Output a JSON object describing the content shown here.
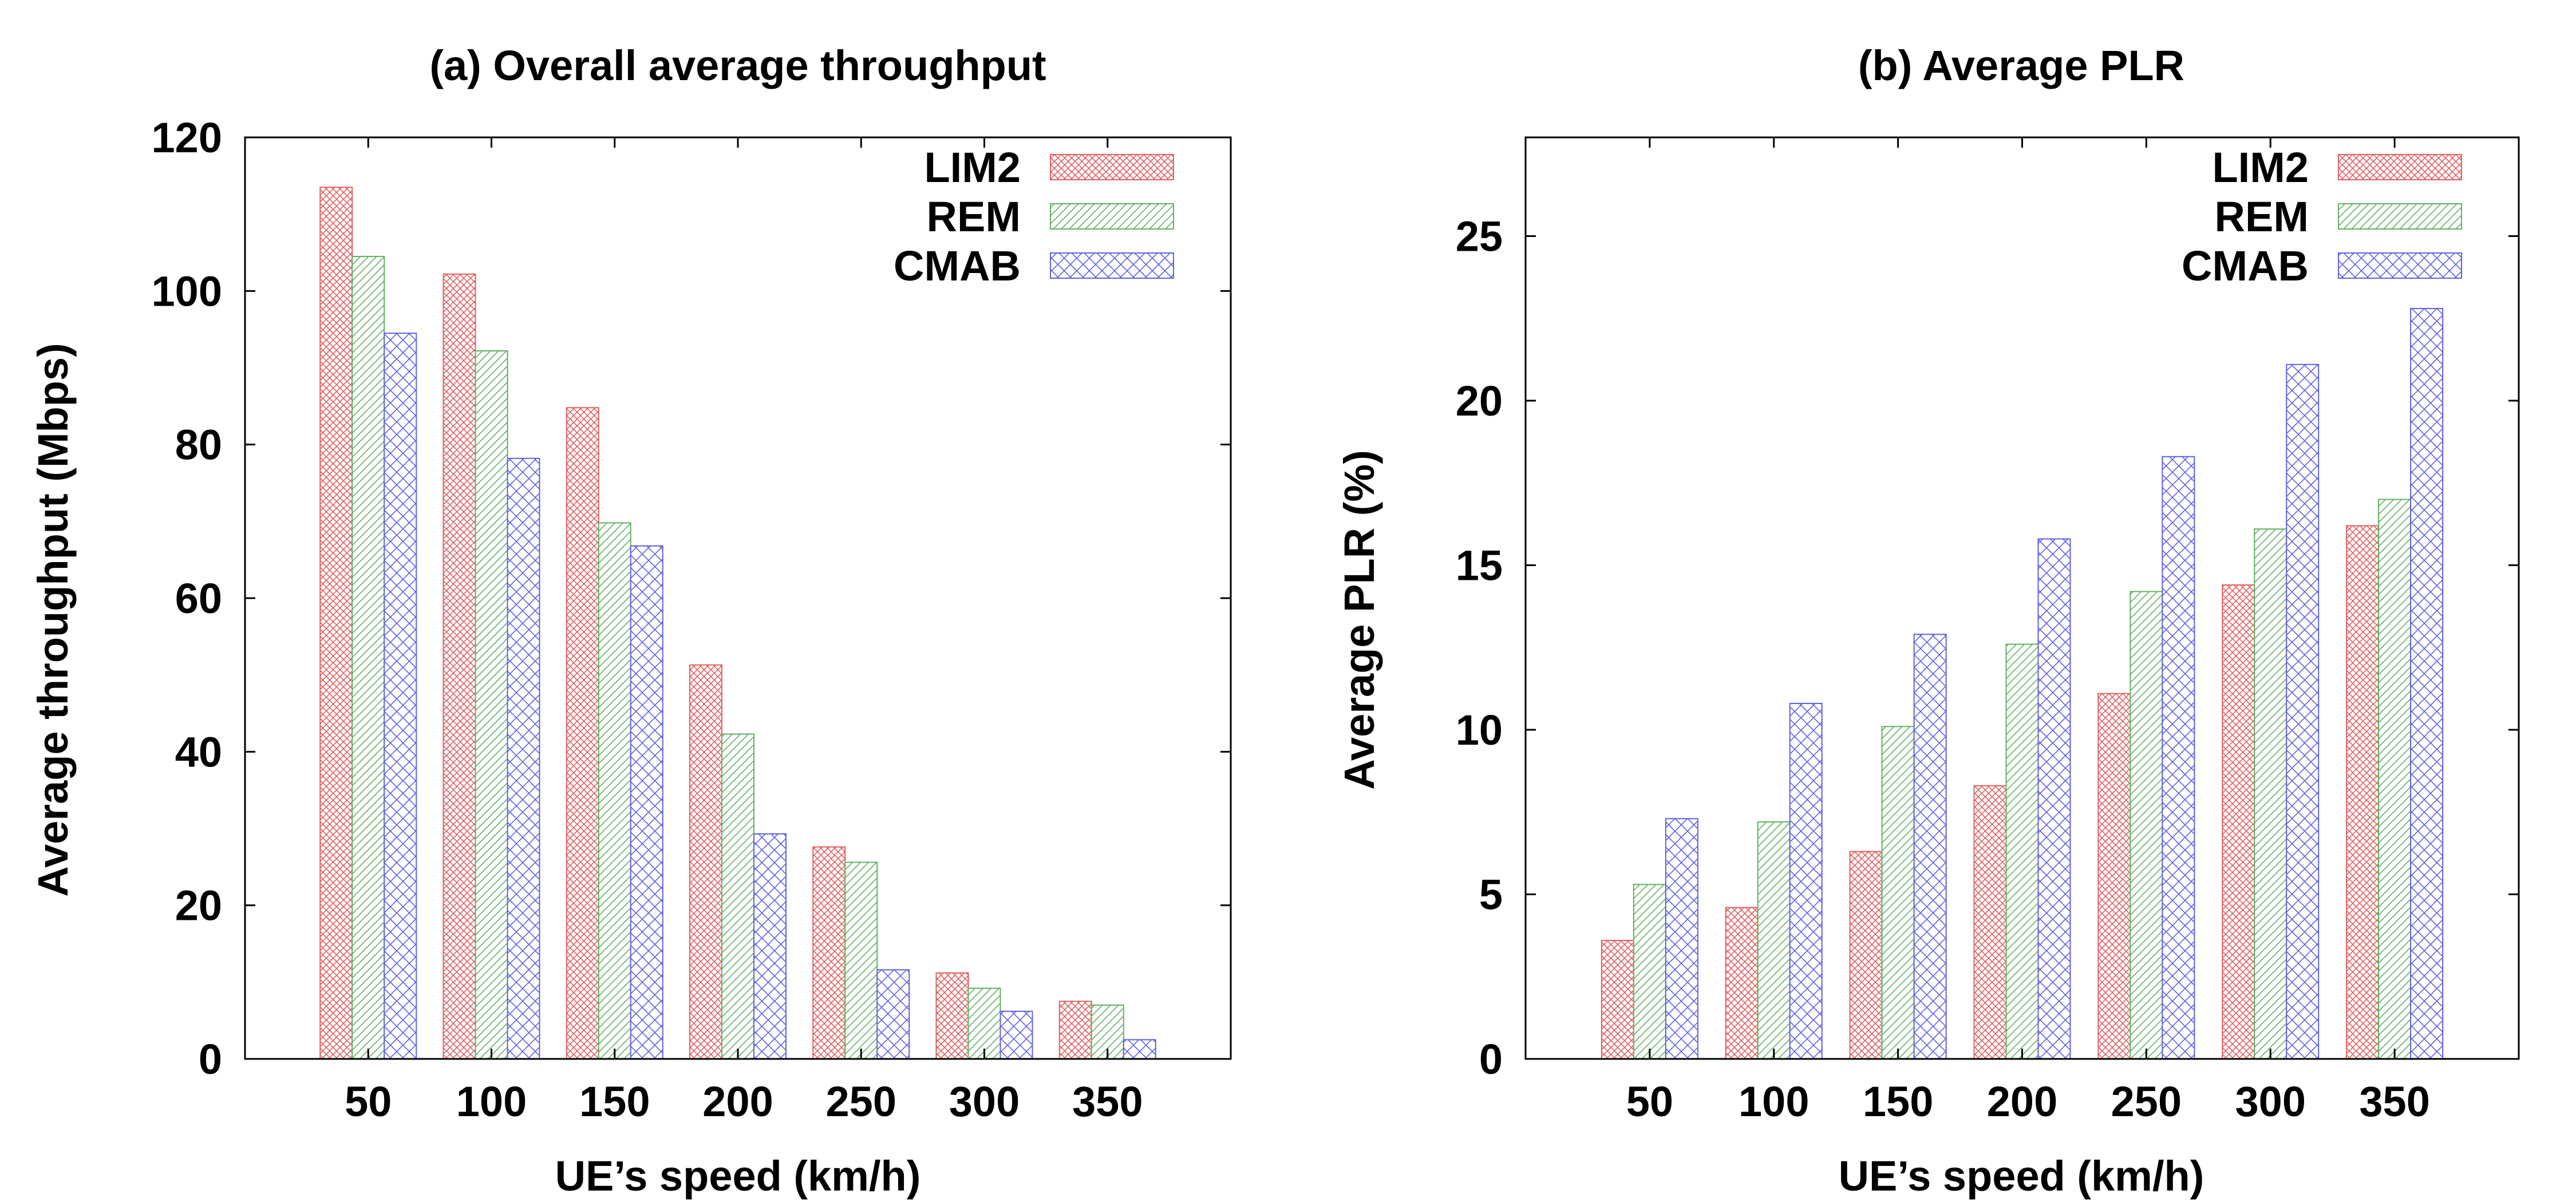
{
  "chart_data": [
    {
      "type": "bar",
      "title": "(a) Overall average throughput",
      "xlabel": "UE’s speed (km/h)",
      "ylabel": "Average throughput (Mbps)",
      "categories": [
        "50",
        "100",
        "150",
        "200",
        "250",
        "300",
        "350"
      ],
      "ylim": [
        0,
        120
      ],
      "yticks": [
        0,
        20,
        40,
        60,
        80,
        100,
        120
      ],
      "legend_position": "top-right",
      "grid": false,
      "series": [
        {
          "name": "LIM2",
          "values": [
            113.5,
            102.2,
            84.8,
            51.3,
            27.6,
            11.2,
            7.5
          ],
          "color": "#e06060",
          "pattern": "crosshatch"
        },
        {
          "name": "REM",
          "values": [
            104.5,
            92.2,
            69.8,
            42.3,
            25.6,
            9.2,
            7.0
          ],
          "color": "#60b060",
          "pattern": "diagonal"
        },
        {
          "name": "CMAB",
          "values": [
            94.5,
            78.2,
            66.8,
            29.3,
            11.6,
            6.2,
            2.5
          ],
          "color": "#6060e0",
          "pattern": "diamond"
        }
      ]
    },
    {
      "type": "bar",
      "title": "(b) Average PLR",
      "xlabel": "UE’s speed (km/h)",
      "ylabel": "Average PLR (%)",
      "categories": [
        "50",
        "100",
        "150",
        "200",
        "250",
        "300",
        "350"
      ],
      "ylim": [
        0,
        28
      ],
      "yticks": [
        0,
        5,
        10,
        15,
        20,
        25
      ],
      "legend_position": "top-right",
      "grid": false,
      "series": [
        {
          "name": "LIM2",
          "values": [
            3.6,
            4.6,
            6.3,
            8.3,
            11.1,
            14.4,
            16.2
          ],
          "color": "#e06060",
          "pattern": "crosshatch"
        },
        {
          "name": "REM",
          "values": [
            5.3,
            7.2,
            10.1,
            12.6,
            14.2,
            16.1,
            17.0
          ],
          "color": "#60b060",
          "pattern": "diagonal"
        },
        {
          "name": "CMAB",
          "values": [
            7.3,
            10.8,
            12.9,
            15.8,
            18.3,
            21.1,
            22.8
          ],
          "color": "#6060e0",
          "pattern": "diamond"
        }
      ]
    }
  ]
}
